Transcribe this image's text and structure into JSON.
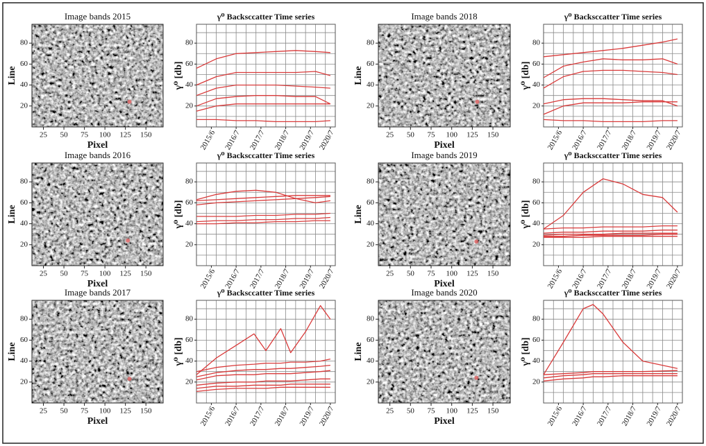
{
  "chart_data": [
    {
      "type": "image",
      "title": "Image bands 2015",
      "xlabel": "Pixel",
      "ylabel": "Line",
      "xlim": [
        11,
        171
      ],
      "ylim": [
        0,
        98
      ],
      "xticks": [
        25,
        50,
        75,
        100,
        125,
        150
      ],
      "yticks": [
        20,
        40,
        60,
        80
      ],
      "marker": {
        "x": 130,
        "y": 24,
        "color": "#e06060"
      }
    },
    {
      "type": "line",
      "title": "γ⁰ Backsccatter Time series",
      "ylabel": "γ⁰ [db]",
      "xlim": [
        0,
        14
      ],
      "ylim": [
        0,
        98
      ],
      "xticks": [
        {
          "value": 1.5,
          "label": "2015/6"
        },
        {
          "value": 4,
          "label": "2016/7"
        },
        {
          "value": 6.5,
          "label": "2017/7"
        },
        {
          "value": 9,
          "label": "2018/7"
        },
        {
          "value": 11.5,
          "label": "2019/7"
        },
        {
          "value": 13.5,
          "label": "2020/7"
        }
      ],
      "yticks": [
        20,
        40,
        60,
        80
      ],
      "xgrid": [
        0,
        1,
        2,
        3,
        4,
        5,
        6,
        7,
        8,
        9,
        10,
        11,
        12,
        13,
        14
      ],
      "ygrid": [
        0,
        10,
        20,
        30,
        40,
        50,
        60,
        70,
        80,
        90
      ],
      "x": [
        0,
        2,
        4,
        6,
        8,
        10,
        12,
        13.5
      ],
      "series": [
        {
          "color": "#d93a3a",
          "values": [
            56,
            65,
            70,
            71,
            72,
            73,
            72,
            71
          ]
        },
        {
          "color": "#d93a3a",
          "values": [
            40,
            48,
            52,
            52,
            52,
            52,
            53,
            49
          ]
        },
        {
          "color": "#d93a3a",
          "values": [
            30,
            37,
            40,
            40,
            40,
            39,
            38,
            37
          ]
        },
        {
          "color": "#d93a3a",
          "values": [
            20,
            27,
            29,
            30,
            30,
            29,
            29,
            22
          ]
        },
        {
          "color": "#d93a3a",
          "values": [
            15,
            20,
            22,
            22,
            22,
            22,
            22,
            22
          ]
        },
        {
          "color": "#d93a3a",
          "values": [
            7,
            7,
            6,
            6,
            5,
            5,
            5,
            6
          ]
        }
      ]
    },
    {
      "type": "image",
      "title": "Image bands 2018",
      "xlabel": "Pixel",
      "ylabel": "Line",
      "xlim": [
        11,
        171
      ],
      "ylim": [
        0,
        98
      ],
      "xticks": [
        25,
        50,
        75,
        100,
        125,
        150
      ],
      "yticks": [
        20,
        40,
        60,
        80
      ],
      "marker": {
        "x": 131,
        "y": 24,
        "color": "#e06060"
      }
    },
    {
      "type": "line",
      "title": "γ⁰ Backsccatter Time series",
      "ylabel": "γ⁰ [db]",
      "xlim": [
        0,
        14
      ],
      "ylim": [
        0,
        98
      ],
      "xticks": [
        {
          "value": 1.5,
          "label": "2015/6"
        },
        {
          "value": 4,
          "label": "2016/7"
        },
        {
          "value": 6.5,
          "label": "2017/7"
        },
        {
          "value": 9,
          "label": "2018/7"
        },
        {
          "value": 11.5,
          "label": "2019/7"
        },
        {
          "value": 13.5,
          "label": "2020/7"
        }
      ],
      "yticks": [
        20,
        40,
        60,
        80
      ],
      "xgrid": [
        0,
        1,
        2,
        3,
        4,
        5,
        6,
        7,
        8,
        9,
        10,
        11,
        12,
        13,
        14
      ],
      "ygrid": [
        0,
        10,
        20,
        30,
        40,
        50,
        60,
        70,
        80,
        90
      ],
      "x": [
        0,
        2,
        4,
        6,
        8,
        10,
        12,
        13.5
      ],
      "series": [
        {
          "color": "#d93a3a",
          "values": [
            67,
            69,
            71,
            73,
            75,
            78,
            81,
            84
          ]
        },
        {
          "color": "#d93a3a",
          "values": [
            47,
            58,
            62,
            65,
            64,
            64,
            65,
            60
          ]
        },
        {
          "color": "#d93a3a",
          "values": [
            37,
            48,
            53,
            54,
            54,
            53,
            52,
            50
          ]
        },
        {
          "color": "#d93a3a",
          "values": [
            22,
            26,
            27,
            27,
            26,
            25,
            25,
            20
          ]
        },
        {
          "color": "#d93a3a",
          "values": [
            12,
            20,
            23,
            23,
            23,
            24,
            24,
            24
          ]
        },
        {
          "color": "#d93a3a",
          "values": [
            7,
            6,
            6,
            5,
            5,
            5,
            6,
            6
          ]
        }
      ]
    },
    {
      "type": "image",
      "title": "Image bands 2016",
      "xlabel": "Pixel",
      "ylabel": "Line",
      "xlim": [
        11,
        171
      ],
      "ylim": [
        0,
        98
      ],
      "xticks": [
        25,
        50,
        75,
        100,
        125,
        150
      ],
      "yticks": [
        20,
        40,
        60,
        80
      ],
      "marker": {
        "x": 128,
        "y": 24,
        "color": "#e06060"
      }
    },
    {
      "type": "line",
      "title": "γ⁰ Backsccatter Time series",
      "ylabel": "γ⁰ [db]",
      "xlim": [
        0,
        14
      ],
      "ylim": [
        0,
        98
      ],
      "xticks": [
        {
          "value": 1.5,
          "label": "2015/6"
        },
        {
          "value": 4,
          "label": "2016/7"
        },
        {
          "value": 6.5,
          "label": "2017/7"
        },
        {
          "value": 9,
          "label": "2018/7"
        },
        {
          "value": 11.5,
          "label": "2019/7"
        },
        {
          "value": 13.5,
          "label": "2020/7"
        }
      ],
      "yticks": [
        20,
        40,
        60,
        80
      ],
      "xgrid": [
        0,
        1,
        2,
        3,
        4,
        5,
        6,
        7,
        8,
        9,
        10,
        11,
        12,
        13,
        14
      ],
      "ygrid": [
        0,
        10,
        20,
        30,
        40,
        50,
        60,
        70,
        80,
        90
      ],
      "x": [
        0,
        2,
        4,
        6,
        8,
        10,
        12,
        13.5
      ],
      "series": [
        {
          "color": "#d93a3a",
          "values": [
            63,
            68,
            71,
            72,
            70,
            64,
            60,
            62
          ]
        },
        {
          "color": "#d93a3a",
          "values": [
            58,
            60,
            61,
            62,
            63,
            64,
            65,
            66
          ]
        },
        {
          "color": "#d93a3a",
          "values": [
            62,
            63,
            64,
            65,
            66,
            67,
            67,
            67
          ]
        },
        {
          "color": "#d93a3a",
          "values": [
            47,
            47,
            47,
            48,
            48,
            49,
            49,
            50
          ]
        },
        {
          "color": "#d93a3a",
          "values": [
            42,
            43,
            43,
            44,
            44,
            45,
            45,
            46
          ]
        },
        {
          "color": "#d93a3a",
          "values": [
            40,
            40,
            41,
            41,
            42,
            42,
            43,
            43
          ]
        }
      ]
    },
    {
      "type": "image",
      "title": "Image bands 2019",
      "xlabel": "Pixel",
      "ylabel": "Line",
      "xlim": [
        11,
        171
      ],
      "ylim": [
        0,
        98
      ],
      "xticks": [
        25,
        50,
        75,
        100,
        125,
        150
      ],
      "yticks": [
        20,
        40,
        60,
        80
      ],
      "marker": {
        "x": 130,
        "y": 23,
        "color": "#e06060"
      }
    },
    {
      "type": "line",
      "title": "γ⁰ Backsccatter Time series",
      "ylabel": "γ⁰ [db]",
      "xlim": [
        0,
        14
      ],
      "ylim": [
        0,
        98
      ],
      "xticks": [
        {
          "value": 1.5,
          "label": "2015/6"
        },
        {
          "value": 4,
          "label": "2016/7"
        },
        {
          "value": 6.5,
          "label": "2017/7"
        },
        {
          "value": 9,
          "label": "2018/7"
        },
        {
          "value": 11.5,
          "label": "2019/7"
        },
        {
          "value": 13.5,
          "label": "2020/7"
        }
      ],
      "yticks": [
        20,
        40,
        60,
        80
      ],
      "xgrid": [
        0,
        1,
        2,
        3,
        4,
        5,
        6,
        7,
        8,
        9,
        10,
        11,
        12,
        13,
        14
      ],
      "ygrid": [
        0,
        10,
        20,
        30,
        40,
        50,
        60,
        70,
        80,
        90
      ],
      "x": [
        0,
        2,
        4,
        6,
        8,
        10,
        12,
        13.5
      ],
      "series": [
        {
          "color": "#d93a3a",
          "values": [
            35,
            48,
            70,
            83,
            78,
            68,
            65,
            51
          ]
        },
        {
          "color": "#d93a3a",
          "values": [
            35,
            36,
            36,
            37,
            37,
            37,
            38,
            38
          ]
        },
        {
          "color": "#d93a3a",
          "values": [
            31,
            32,
            32,
            33,
            33,
            33,
            34,
            34
          ]
        },
        {
          "color": "#d93a3a",
          "values": [
            29,
            30,
            30,
            30,
            31,
            31,
            31,
            31
          ]
        },
        {
          "color": "#d93a3a",
          "values": [
            28,
            28,
            29,
            29,
            29,
            29,
            30,
            30
          ]
        },
        {
          "color": "#d93a3a",
          "values": [
            27,
            27,
            27,
            28,
            28,
            28,
            28,
            28
          ]
        }
      ]
    },
    {
      "type": "image",
      "title": "Image bands 2017",
      "xlabel": "Pixel",
      "ylabel": "Line",
      "xlim": [
        11,
        171
      ],
      "ylim": [
        0,
        98
      ],
      "xticks": [
        25,
        50,
        75,
        100,
        125,
        150
      ],
      "yticks": [
        20,
        40,
        60,
        80
      ],
      "marker": {
        "x": 130,
        "y": 23,
        "color": "#e06060"
      }
    },
    {
      "type": "line",
      "title": "γ⁰ Backsccatter Time series",
      "ylabel": "γ⁰ [db]",
      "xlim": [
        0,
        14
      ],
      "ylim": [
        0,
        98
      ],
      "xticks": [
        {
          "value": 1.5,
          "label": "2015/6"
        },
        {
          "value": 4,
          "label": "2016/7"
        },
        {
          "value": 6.5,
          "label": "2017/7"
        },
        {
          "value": 9,
          "label": "2018/7"
        },
        {
          "value": 11.5,
          "label": "2019/7"
        },
        {
          "value": 13.5,
          "label": "2020/7"
        }
      ],
      "yticks": [
        20,
        40,
        60,
        80
      ],
      "xgrid": [
        0,
        1,
        2,
        3,
        4,
        5,
        6,
        7,
        8,
        9,
        10,
        11,
        12,
        13,
        14
      ],
      "ygrid": [
        0,
        10,
        20,
        30,
        40,
        50,
        60,
        70,
        80,
        90
      ],
      "x": [
        0,
        2,
        4,
        5.8,
        7,
        8.5,
        9.5,
        11,
        12.5,
        13.5
      ],
      "series": [
        {
          "color": "#d93a3a",
          "values": [
            27,
            43,
            55,
            66,
            50,
            71,
            48,
            68,
            93,
            80
          ]
        },
        {
          "color": "#d93a3a",
          "values": [
            30,
            34,
            36,
            37,
            38,
            38,
            39,
            39,
            40,
            42
          ]
        },
        {
          "color": "#d93a3a",
          "values": [
            25,
            29,
            31,
            32,
            32,
            33,
            33,
            34,
            35,
            36
          ]
        },
        {
          "color": "#d93a3a",
          "values": [
            22,
            26,
            27,
            27,
            28,
            28,
            28,
            29,
            30,
            31
          ]
        },
        {
          "color": "#d93a3a",
          "values": [
            17,
            19,
            20,
            20,
            21,
            21,
            21,
            22,
            23,
            23
          ]
        },
        {
          "color": "#d93a3a",
          "values": [
            14,
            16,
            16,
            17,
            17,
            17,
            18,
            18,
            18,
            18
          ]
        },
        {
          "color": "#d93a3a",
          "values": [
            11,
            13,
            14,
            14,
            14,
            15,
            15,
            15,
            15,
            15
          ]
        }
      ]
    },
    {
      "type": "image",
      "title": "Image bands 2020",
      "xlabel": "Pixel",
      "ylabel": "Line",
      "xlim": [
        11,
        171
      ],
      "ylim": [
        0,
        98
      ],
      "xticks": [
        25,
        50,
        75,
        100,
        125,
        150
      ],
      "yticks": [
        20,
        40,
        60,
        80
      ],
      "marker": {
        "x": 130,
        "y": 24,
        "color": "#e06060"
      }
    },
    {
      "type": "line",
      "title": "γ⁰ Backsccatter Time series",
      "ylabel": "γ⁰ [db]",
      "xlim": [
        0,
        14
      ],
      "ylim": [
        0,
        98
      ],
      "xticks": [
        {
          "value": 1.5,
          "label": "2015/6"
        },
        {
          "value": 4,
          "label": "2016/7"
        },
        {
          "value": 6.5,
          "label": "2017/7"
        },
        {
          "value": 9,
          "label": "2018/7"
        },
        {
          "value": 11.5,
          "label": "2019/7"
        },
        {
          "value": 13.5,
          "label": "2020/7"
        }
      ],
      "yticks": [
        20,
        40,
        60,
        80
      ],
      "xgrid": [
        0,
        1,
        2,
        3,
        4,
        5,
        6,
        7,
        8,
        9,
        10,
        11,
        12,
        13,
        14
      ],
      "ygrid": [
        0,
        10,
        20,
        30,
        40,
        50,
        60,
        70,
        80,
        90
      ],
      "x": [
        0,
        2,
        4,
        5,
        6,
        8,
        10,
        13.5
      ],
      "series": [
        {
          "color": "#d93a3a",
          "values": [
            27,
            58,
            90,
            94,
            85,
            58,
            40,
            33
          ]
        },
        {
          "color": "#d93a3a",
          "values": [
            27,
            28,
            29,
            30,
            30,
            30,
            30,
            31
          ]
        },
        {
          "color": "#d93a3a",
          "values": [
            24,
            26,
            27,
            28,
            28,
            28,
            28,
            28
          ]
        },
        {
          "color": "#d93a3a",
          "values": [
            21,
            23,
            24,
            25,
            25,
            26,
            26,
            26
          ]
        }
      ]
    }
  ]
}
